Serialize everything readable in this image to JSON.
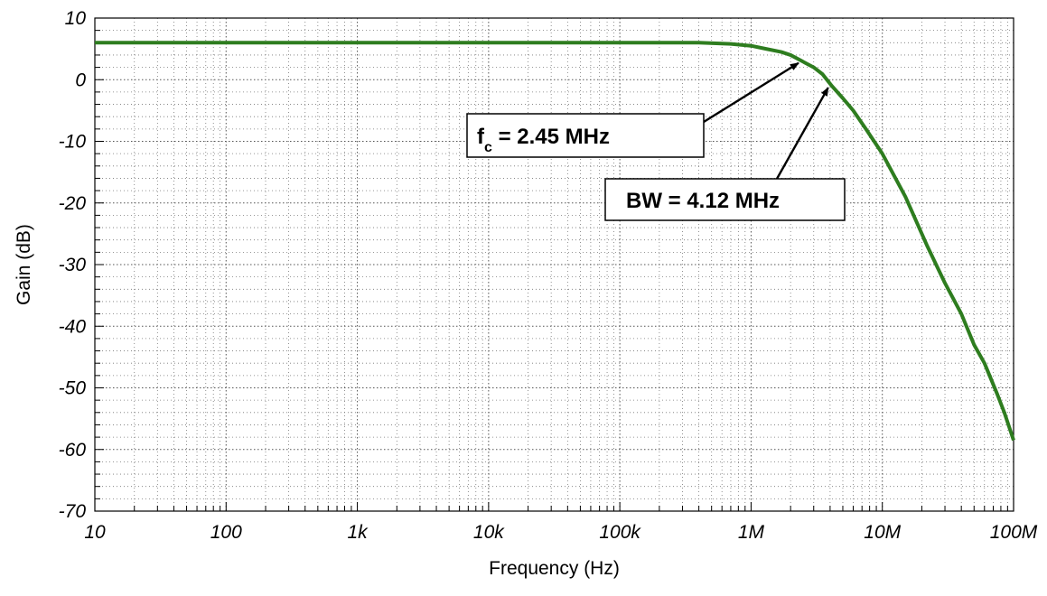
{
  "chart_data": {
    "type": "line",
    "title": "",
    "xlabel": "Frequency (Hz)",
    "ylabel": "Gain (dB)",
    "xscale": "log",
    "xlim": [
      10,
      100000000
    ],
    "ylim": [
      -70,
      10
    ],
    "x_ticks": [
      {
        "value": 10,
        "label": "10"
      },
      {
        "value": 100,
        "label": "100"
      },
      {
        "value": 1000,
        "label": "1k"
      },
      {
        "value": 10000,
        "label": "10k"
      },
      {
        "value": 100000,
        "label": "100k"
      },
      {
        "value": 1000000,
        "label": "1M"
      },
      {
        "value": 10000000,
        "label": "10M"
      },
      {
        "value": 100000000,
        "label": "100M"
      }
    ],
    "y_ticks": [
      10,
      0,
      -10,
      -20,
      -30,
      -40,
      -50,
      -60,
      -70
    ],
    "grid": true,
    "series": [
      {
        "color": "#2e7d1f",
        "x": [
          10,
          100,
          1000,
          10000,
          100000,
          400000,
          700000,
          1000000,
          1300000,
          1700000,
          2000000,
          2450000,
          3000000,
          3500000,
          4120000,
          5000000,
          6000000,
          7500000,
          10000000,
          15000000,
          22000000,
          30000000,
          40000000,
          50000000,
          60000000,
          75000000,
          85000000,
          100000000
        ],
        "y": [
          6,
          6,
          6,
          6,
          6,
          6,
          5.8,
          5.5,
          5,
          4.5,
          4,
          3,
          2,
          0.9,
          -1,
          -3,
          -5,
          -8,
          -12,
          -19,
          -27,
          -33,
          -38,
          -43,
          -46,
          -51,
          -54,
          -58.5
        ]
      }
    ],
    "annotations": [
      {
        "kind": "fc",
        "prefix": "f",
        "subscript": "c",
        "text": " = 2.45 MHz",
        "target_x": 2450000,
        "target_y": 3
      },
      {
        "kind": "bw",
        "text": "BW = 4.12 MHz",
        "target_x": 4120000,
        "target_y": -1
      }
    ]
  }
}
